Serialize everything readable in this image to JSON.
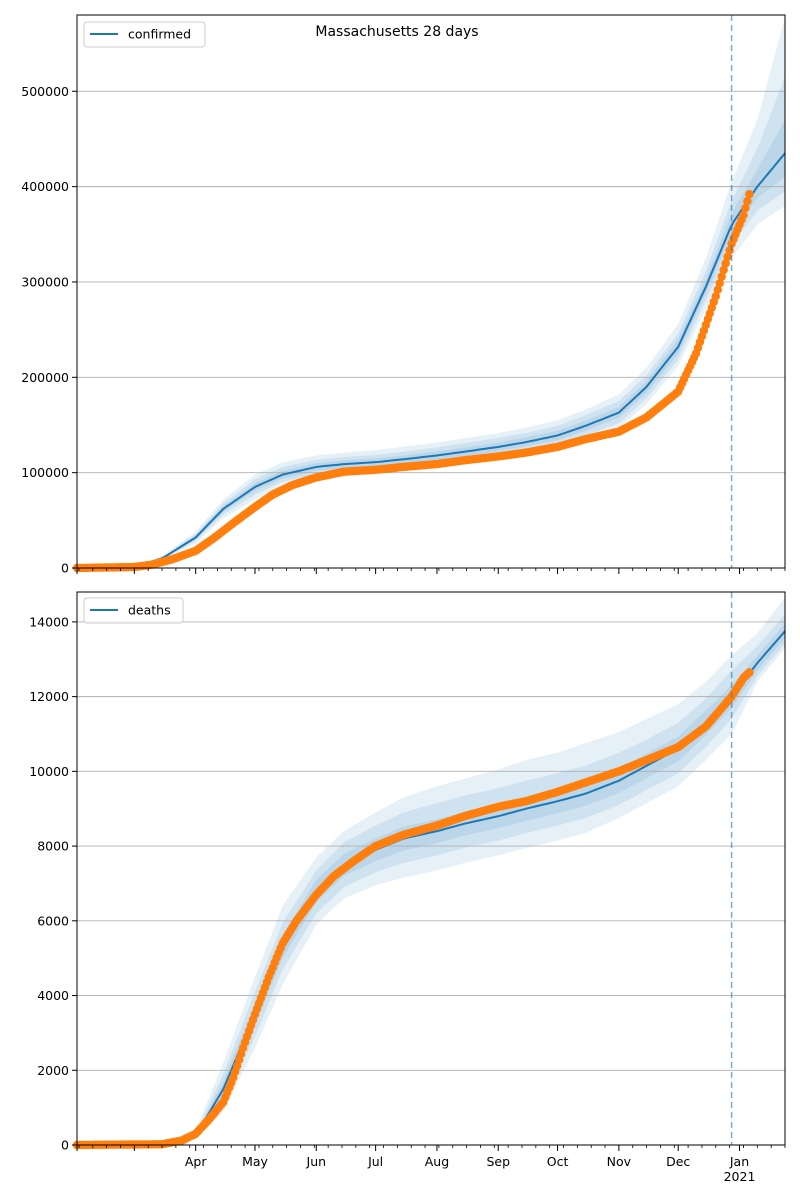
{
  "figure": {
    "title": "Massachusetts 28 days"
  },
  "colors": {
    "model_line": "#1f77b4",
    "observed_points": "#ff7f0e",
    "band": "#1f77b4",
    "forecast_marker": "#1f77b4",
    "grid": "#b0b0b0"
  },
  "chart_data": [
    {
      "type": "line",
      "panel": "top",
      "title": "Massachusetts 28 days",
      "legend": {
        "label": "confirmed",
        "placement": "top-left"
      },
      "xlim": [
        "2020-02-01",
        "2021-01-24"
      ],
      "ylim": [
        0,
        580000
      ],
      "yticks": [
        0,
        100000,
        200000,
        300000,
        400000,
        500000
      ],
      "grid": "horizontal",
      "forecast_start": "2020-12-28",
      "model": {
        "name": "confirmed",
        "x": [
          "2020-02-01",
          "2020-03-01",
          "2020-03-15",
          "2020-04-01",
          "2020-04-15",
          "2020-05-01",
          "2020-05-15",
          "2020-06-01",
          "2020-06-15",
          "2020-07-01",
          "2020-07-15",
          "2020-08-01",
          "2020-08-15",
          "2020-09-01",
          "2020-09-15",
          "2020-10-01",
          "2020-10-15",
          "2020-11-01",
          "2020-11-15",
          "2020-12-01",
          "2020-12-15",
          "2020-12-28",
          "2021-01-10",
          "2021-01-24"
        ],
        "y": [
          0,
          1500,
          10000,
          32000,
          62000,
          85000,
          98000,
          106000,
          109000,
          111000,
          114000,
          118000,
          122000,
          127000,
          132000,
          139000,
          149000,
          163000,
          190000,
          232000,
          295000,
          360000,
          400000,
          435000
        ],
        "bands": [
          {
            "lower": [
              0,
              1200,
              8000,
              26000,
              52000,
              72000,
              86000,
              94000,
              97000,
              99000,
              101500,
              105000,
              109000,
              113500,
              118000,
              124500,
              134000,
              147000,
              172000,
              212000,
              272000,
              325000,
              360000,
              380000
            ],
            "upper": [
              0,
              1900,
              12500,
              38000,
              72000,
              98000,
              111000,
              118000,
              121000,
              123500,
              127000,
              131500,
              136000,
              141500,
              147000,
              155000,
              166000,
              182000,
              210000,
              256000,
              325000,
              405000,
              470000,
              578000
            ]
          },
          {
            "lower": [
              0,
              1300,
              8800,
              28500,
              56000,
              77000,
              90500,
              98500,
              101500,
              103500,
              106000,
              109500,
              113500,
              118000,
              123000,
              129500,
              139000,
              152000,
              178000,
              219000,
              281000,
              338000,
              375000,
              395000
            ],
            "upper": [
              0,
              1750,
              11500,
              35500,
              68000,
              93000,
              106000,
              113500,
              116500,
              118500,
              122000,
              126500,
              131000,
              136500,
              141500,
              149000,
              160000,
              175000,
              202000,
              246000,
              312000,
              385000,
              440000,
              515000
            ]
          },
          {
            "lower": [
              0,
              1400,
              9300,
              30000,
              59000,
              81000,
              94000,
              102000,
              105000,
              107000,
              110000,
              113500,
              117500,
              122500,
              127500,
              134000,
              144000,
              157500,
              184000,
              225000,
              288000,
              350000,
              388000,
              410000
            ],
            "upper": [
              0,
              1600,
              10700,
              34000,
              65000,
              89000,
              102000,
              110000,
              113000,
              115000,
              118000,
              122500,
              126500,
              131500,
              137000,
              144000,
              154500,
              169000,
              196000,
              240000,
              303000,
              372000,
              418000,
              470000
            ]
          }
        ]
      },
      "observed": {
        "x": [
          "2020-02-01",
          "2020-03-01",
          "2020-03-10",
          "2020-03-20",
          "2020-04-01",
          "2020-04-10",
          "2020-04-20",
          "2020-05-01",
          "2020-05-10",
          "2020-05-20",
          "2020-06-01",
          "2020-06-15",
          "2020-07-01",
          "2020-07-15",
          "2020-08-01",
          "2020-08-15",
          "2020-09-01",
          "2020-09-15",
          "2020-10-01",
          "2020-10-15",
          "2020-11-01",
          "2020-11-15",
          "2020-12-01",
          "2020-12-10",
          "2020-12-20",
          "2020-12-28",
          "2021-01-03",
          "2021-01-06"
        ],
        "y": [
          0,
          1000,
          3500,
          9000,
          18000,
          31000,
          47000,
          64000,
          77000,
          87000,
          95000,
          101000,
          103000,
          106000,
          109000,
          113000,
          117000,
          121000,
          127000,
          135000,
          143000,
          158000,
          185000,
          225000,
          285000,
          340000,
          370000,
          392000
        ]
      }
    },
    {
      "type": "line",
      "panel": "bottom",
      "legend": {
        "label": "deaths",
        "placement": "top-left"
      },
      "xlim": [
        "2020-02-01",
        "2021-01-24"
      ],
      "ylim": [
        0,
        14800
      ],
      "yticks": [
        0,
        2000,
        4000,
        6000,
        8000,
        10000,
        12000,
        14000
      ],
      "xticks": [
        "Apr",
        "May",
        "Jun",
        "Jul",
        "Aug",
        "Sep",
        "Oct",
        "Nov",
        "Dec",
        "Jan"
      ],
      "xtick_year": "2021",
      "grid": "horizontal",
      "forecast_start": "2020-12-28",
      "model": {
        "name": "deaths",
        "x": [
          "2020-02-01",
          "2020-03-15",
          "2020-04-01",
          "2020-04-15",
          "2020-05-01",
          "2020-05-15",
          "2020-06-01",
          "2020-06-15",
          "2020-07-01",
          "2020-07-15",
          "2020-08-01",
          "2020-08-15",
          "2020-09-01",
          "2020-09-15",
          "2020-10-01",
          "2020-10-15",
          "2020-11-01",
          "2020-11-15",
          "2020-12-01",
          "2020-12-15",
          "2020-12-28",
          "2021-01-10",
          "2021-01-24"
        ],
        "y": [
          0,
          30,
          250,
          1500,
          3500,
          5300,
          6800,
          7500,
          7900,
          8200,
          8400,
          8600,
          8800,
          9000,
          9200,
          9400,
          9750,
          10150,
          10600,
          11300,
          12000,
          12900,
          13750
        ],
        "bands": [
          {
            "lower": [
              0,
              20,
              150,
              900,
              2600,
              4300,
              5900,
              6600,
              6950,
              7150,
              7350,
              7550,
              7750,
              7950,
              8150,
              8350,
              8750,
              9150,
              9600,
              10300,
              11000,
              12400,
              13300
            ],
            "upper": [
              0,
              50,
              400,
              2200,
              4500,
              6400,
              7700,
              8400,
              8900,
              9300,
              9600,
              9800,
              10050,
              10300,
              10500,
              10750,
              11050,
              11400,
              11800,
              12400,
              13100,
              13700,
              14650
            ]
          },
          {
            "lower": [
              0,
              23,
              180,
              1100,
              2900,
              4700,
              6200,
              6900,
              7300,
              7550,
              7750,
              7950,
              8150,
              8350,
              8550,
              8750,
              9100,
              9500,
              9950,
              10650,
              11400,
              12550,
              13420
            ],
            "upper": [
              0,
              42,
              330,
              1900,
              4100,
              5950,
              7350,
              8100,
              8550,
              8900,
              9150,
              9350,
              9550,
              9750,
              9950,
              10150,
              10500,
              10850,
              11300,
              11950,
              12700,
              13350,
              14200
            ]
          },
          {
            "lower": [
              0,
              26,
              210,
              1300,
              3200,
              5000,
              6500,
              7200,
              7600,
              7880,
              8080,
              8280,
              8480,
              8680,
              8880,
              9080,
              9420,
              9820,
              10270,
              10970,
              11700,
              12700,
              13560
            ],
            "upper": [
              0,
              36,
              290,
              1700,
              3800,
              5600,
              7100,
              7800,
              8200,
              8520,
              8720,
              8920,
              9120,
              9320,
              9520,
              9720,
              10080,
              10480,
              10930,
              11630,
              12300,
              13100,
              13950
            ]
          }
        ]
      },
      "observed": {
        "x": [
          "2020-02-01",
          "2020-03-15",
          "2020-03-25",
          "2020-04-01",
          "2020-04-08",
          "2020-04-15",
          "2020-04-20",
          "2020-04-25",
          "2020-05-01",
          "2020-05-08",
          "2020-05-15",
          "2020-05-22",
          "2020-06-01",
          "2020-06-10",
          "2020-06-20",
          "2020-07-01",
          "2020-07-15",
          "2020-08-01",
          "2020-08-15",
          "2020-09-01",
          "2020-09-15",
          "2020-10-01",
          "2020-10-15",
          "2020-11-01",
          "2020-11-15",
          "2020-12-01",
          "2020-12-15",
          "2020-12-28",
          "2021-01-03",
          "2021-01-06"
        ],
        "y": [
          0,
          20,
          120,
          300,
          700,
          1150,
          1800,
          2600,
          3500,
          4500,
          5400,
          6000,
          6700,
          7200,
          7600,
          8000,
          8300,
          8550,
          8800,
          9050,
          9200,
          9450,
          9700,
          10000,
          10300,
          10650,
          11200,
          12000,
          12500,
          12650
        ]
      }
    }
  ]
}
